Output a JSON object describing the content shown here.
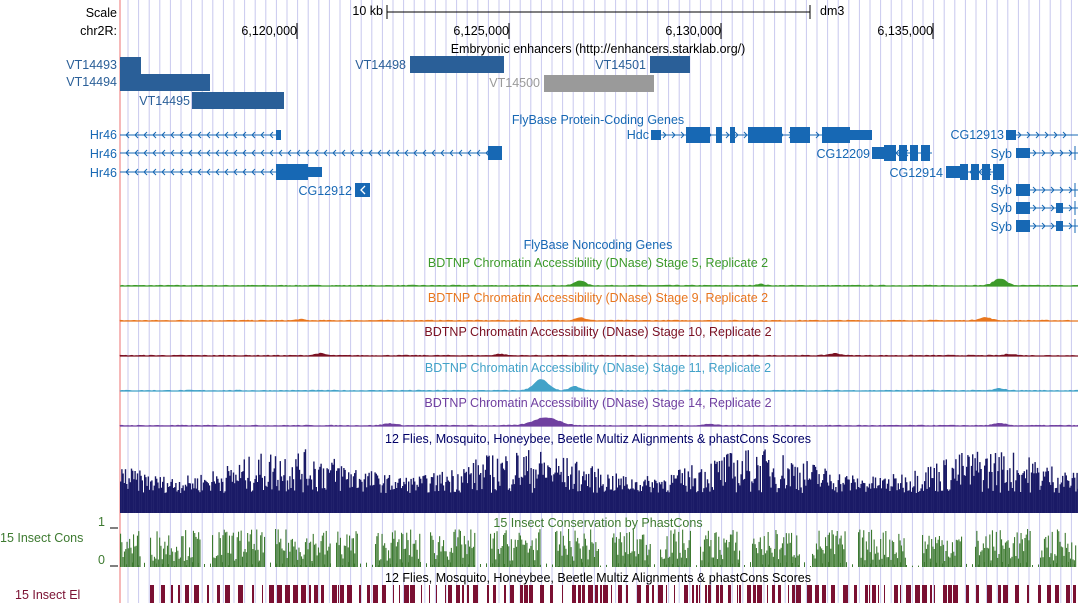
{
  "ruler": {
    "scale_label": "Scale",
    "scale_bar_text": "10 kb",
    "assembly": "dm3",
    "chrom_label": "chr2R:",
    "positions": [
      "6,120,000",
      "6,125,000",
      "6,130,000",
      "6,135,000"
    ]
  },
  "tracks": {
    "enhancers": {
      "title": "Embryonic enhancers (http://enhancers.starklab.org/)",
      "items": [
        "VT14493",
        "VT14494",
        "VT14495",
        "VT14498",
        "VT14500",
        "VT14501"
      ]
    },
    "flybase_coding": {
      "title": "FlyBase Protein-Coding Genes",
      "genes": [
        "Hr46",
        "Hr46",
        "Hr46",
        "CG12912",
        "Hdc",
        "CG12209",
        "CG12914",
        "CG12913",
        "Syb",
        "Syb",
        "Syb",
        "Syb"
      ]
    },
    "flybase_noncoding": {
      "title": "FlyBase Noncoding Genes"
    },
    "dnase_5": {
      "title": "BDTNP Chromatin Accessibility (DNase) Stage 5, Replicate 2",
      "color": "#3c9a2a"
    },
    "dnase_9": {
      "title": "BDTNP Chromatin Accessibility (DNase) Stage 9, Replicate 2",
      "color": "#e8761e"
    },
    "dnase_10": {
      "title": "BDTNP Chromatin Accessibility (DNase) Stage 10, Replicate 2",
      "color": "#7a1022"
    },
    "dnase_11": {
      "title": "BDTNP Chromatin Accessibility (DNase) Stage 11, Replicate 2",
      "color": "#42a2c8"
    },
    "dnase_14": {
      "title": "BDTNP Chromatin Accessibility (DNase) Stage 14, Replicate 2",
      "color": "#7040a0"
    },
    "multiz": {
      "title": "12 Flies, Mosquito, Honeybee, Beetle Multiz Alignments & phastCons Scores",
      "color": "#1a1a66"
    },
    "phastcons": {
      "title": "15 Insect Conservation by PhastCons",
      "side_label": "15 Insect Cons",
      "ymax": "1",
      "ymin": "0",
      "color": "#3d7a30"
    },
    "elements": {
      "title": "12 Flies, Mosquito, Honeybee, Beetle Multiz Alignments & phastCons Scores",
      "side_label": "15 Insect El",
      "color": "#7a1032"
    }
  },
  "colors": {
    "gene_blue": "#1768b4",
    "enhancer_blue": "#2a5f98",
    "enhancer_grey": "#9a9a9a",
    "gridline": "#c8c8ee",
    "left_margin_line": "#f4a0a0"
  }
}
